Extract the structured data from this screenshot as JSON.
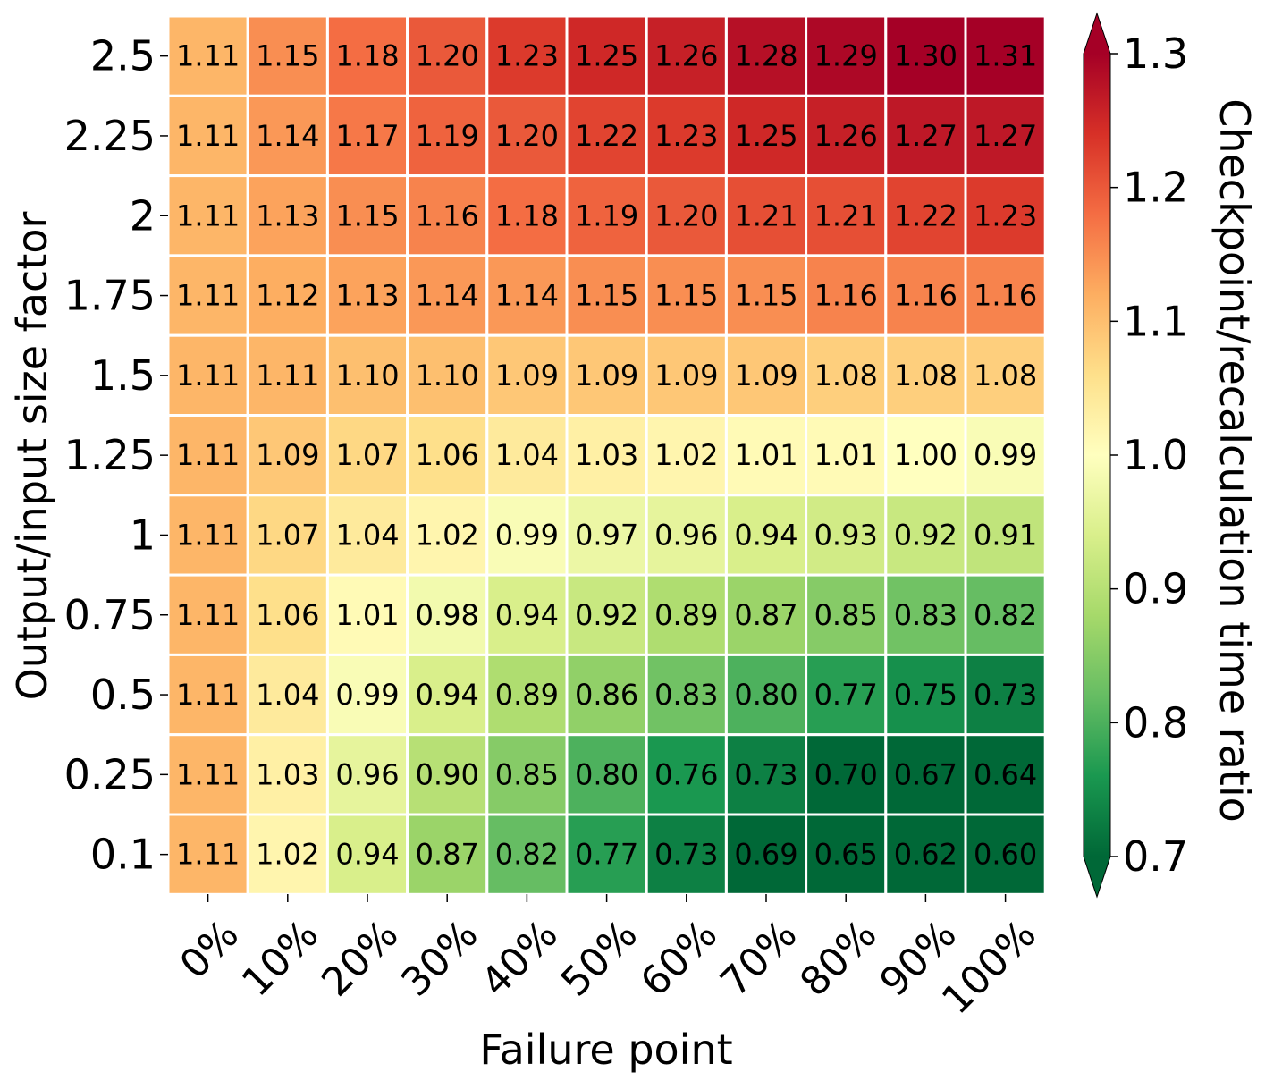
{
  "chart_data": {
    "type": "heatmap",
    "title": "",
    "xlabel": "Failure point",
    "ylabel": "Output/input size factor",
    "x_categories": [
      "0%",
      "10%",
      "20%",
      "30%",
      "40%",
      "50%",
      "60%",
      "70%",
      "80%",
      "90%",
      "100%"
    ],
    "y_categories": [
      "2.5",
      "2.25",
      "2",
      "1.75",
      "1.5",
      "1.25",
      "1",
      "0.75",
      "0.5",
      "0.25",
      "0.1"
    ],
    "values": [
      [
        1.11,
        1.15,
        1.18,
        1.2,
        1.23,
        1.25,
        1.26,
        1.28,
        1.29,
        1.3,
        1.31
      ],
      [
        1.11,
        1.14,
        1.17,
        1.19,
        1.2,
        1.22,
        1.23,
        1.25,
        1.26,
        1.27,
        1.27
      ],
      [
        1.11,
        1.13,
        1.15,
        1.16,
        1.18,
        1.19,
        1.2,
        1.21,
        1.21,
        1.22,
        1.23
      ],
      [
        1.11,
        1.12,
        1.13,
        1.14,
        1.14,
        1.15,
        1.15,
        1.15,
        1.16,
        1.16,
        1.16
      ],
      [
        1.11,
        1.11,
        1.1,
        1.1,
        1.09,
        1.09,
        1.09,
        1.09,
        1.08,
        1.08,
        1.08
      ],
      [
        1.11,
        1.09,
        1.07,
        1.06,
        1.04,
        1.03,
        1.02,
        1.01,
        1.01,
        1.0,
        0.99
      ],
      [
        1.11,
        1.07,
        1.04,
        1.02,
        0.99,
        0.97,
        0.96,
        0.94,
        0.93,
        0.92,
        0.91
      ],
      [
        1.11,
        1.06,
        1.01,
        0.98,
        0.94,
        0.92,
        0.89,
        0.87,
        0.85,
        0.83,
        0.82
      ],
      [
        1.11,
        1.04,
        0.99,
        0.94,
        0.89,
        0.86,
        0.83,
        0.8,
        0.77,
        0.75,
        0.73
      ],
      [
        1.11,
        1.03,
        0.96,
        0.9,
        0.85,
        0.8,
        0.76,
        0.73,
        0.7,
        0.67,
        0.64
      ],
      [
        1.11,
        1.02,
        0.94,
        0.87,
        0.82,
        0.77,
        0.73,
        0.69,
        0.65,
        0.62,
        0.6
      ]
    ],
    "colormap": "RdYlGn_r",
    "colorbar": {
      "label": "Checkpoint/recalculation time ratio",
      "range": [
        0.7,
        1.3
      ],
      "ticks": [
        "0.7",
        "0.8",
        "0.9",
        "1.0",
        "1.1",
        "1.2",
        "1.3"
      ],
      "extend": "both"
    },
    "annotations": "cell values shown to 2 decimals",
    "grid": false
  }
}
